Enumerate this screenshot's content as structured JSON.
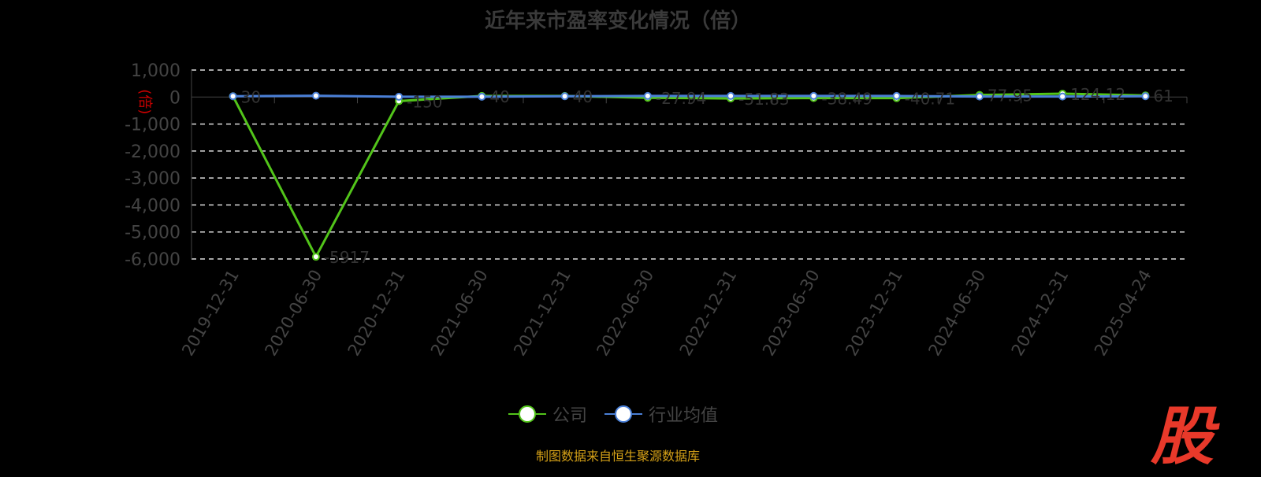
{
  "title": "近年来市盈率变化情况（倍）",
  "chart_data": {
    "type": "line",
    "title": "近年来市盈率变化情况（倍）",
    "ylabel": "(倍)",
    "ylim": [
      -6000,
      1000
    ],
    "yticks": [
      1000,
      0,
      -1000,
      -2000,
      -3000,
      -4000,
      -5000,
      -6000
    ],
    "ytick_labels": [
      "1,000",
      "0",
      "-1,000",
      "-2,000",
      "-3,000",
      "-4,000",
      "-5,000",
      "-6,000"
    ],
    "grid": true,
    "legend_position": "bottom",
    "categories": [
      "2019-12-31",
      "2020-06-30",
      "2020-12-31",
      "2021-06-30",
      "2021-12-31",
      "2022-06-30",
      "2022-12-31",
      "2023-06-30",
      "2023-12-31",
      "2024-06-30",
      "2024-12-31",
      "2025-04-24"
    ],
    "series": [
      {
        "name": "公司",
        "color": "#52c41a",
        "values": [
          30,
          -5917,
          -150,
          40,
          40,
          -27.94,
          -51.83,
          -38.49,
          -40.71,
          77.95,
          124.12,
          61
        ]
      },
      {
        "name": "行业均值",
        "color": "#4a7fd6",
        "values": [
          30,
          50,
          10.87,
          12.3,
          30,
          40,
          40,
          40,
          40,
          20,
          20,
          30
        ]
      }
    ]
  },
  "source": "制图数据来自恒生聚源数据库",
  "logo_text": "股"
}
